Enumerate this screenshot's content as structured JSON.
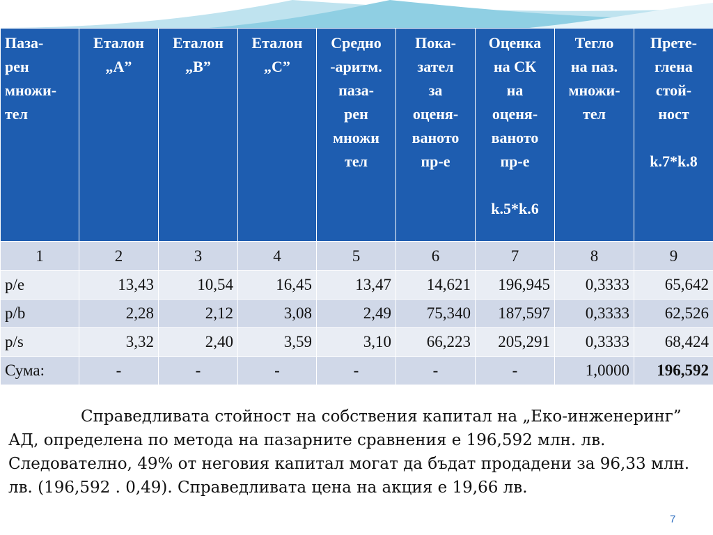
{
  "table": {
    "headers": [
      {
        "lines": [
          "Паза-",
          "рен",
          "множи-",
          "тел"
        ]
      },
      {
        "lines": [
          "Еталон",
          "„А”"
        ]
      },
      {
        "lines": [
          "Еталон",
          "„В”"
        ]
      },
      {
        "lines": [
          "Еталон",
          "„С”"
        ]
      },
      {
        "lines": [
          "Средно",
          "-аритм.",
          "паза-",
          "рен",
          "множи",
          "тел"
        ]
      },
      {
        "lines": [
          "Пока-",
          "зател",
          "за",
          "оценя-",
          "ваното",
          "пр-е"
        ]
      },
      {
        "lines": [
          "Оценка",
          "на СК",
          "на",
          "оценя-",
          "ваното",
          "пр-е",
          "",
          "k.5*k.6"
        ]
      },
      {
        "lines": [
          "Тегло",
          "на паз.",
          "множи-",
          "тел"
        ]
      },
      {
        "lines": [
          "Прете-",
          "глена",
          "стой-",
          "ност",
          "",
          "k.7*k.8"
        ]
      }
    ],
    "column_numbers": [
      "1",
      "2",
      "3",
      "4",
      "5",
      "6",
      "7",
      "8",
      "9"
    ],
    "rows": [
      [
        "p/e",
        "13,43",
        "10,54",
        "16,45",
        "13,47",
        "14,621",
        "196,945",
        "0,3333",
        "65,642"
      ],
      [
        "p/b",
        "2,28",
        "2,12",
        "3,08",
        "2,49",
        "75,340",
        "187,597",
        "0,3333",
        "62,526"
      ],
      [
        "p/s",
        "3,32",
        "2,40",
        "3,59",
        "3,10",
        "66,223",
        "205,291",
        "0,3333",
        "68,424"
      ],
      [
        "Сума:",
        "-",
        "-",
        "-",
        "-",
        "-",
        "-",
        "1,0000",
        "196,592"
      ]
    ]
  },
  "note": "Справедливата стойност на собствения капитал на „Еко-инженеринг” АД, определена по метода на пазарните сравнения е 196,592 млн. лв. Следователно, 49% от неговия капитал могат да бъдат продадени за 96,33 млн. лв. (196,592 . 0,49). Справедливата цена на акция е 19,66 лв.",
  "page_number": "7",
  "colors": {
    "header_bg": "#1e5db0",
    "row_odd": "#d0d8e8",
    "row_even": "#e9edf4",
    "accent_wave": "#9fd3e6"
  }
}
